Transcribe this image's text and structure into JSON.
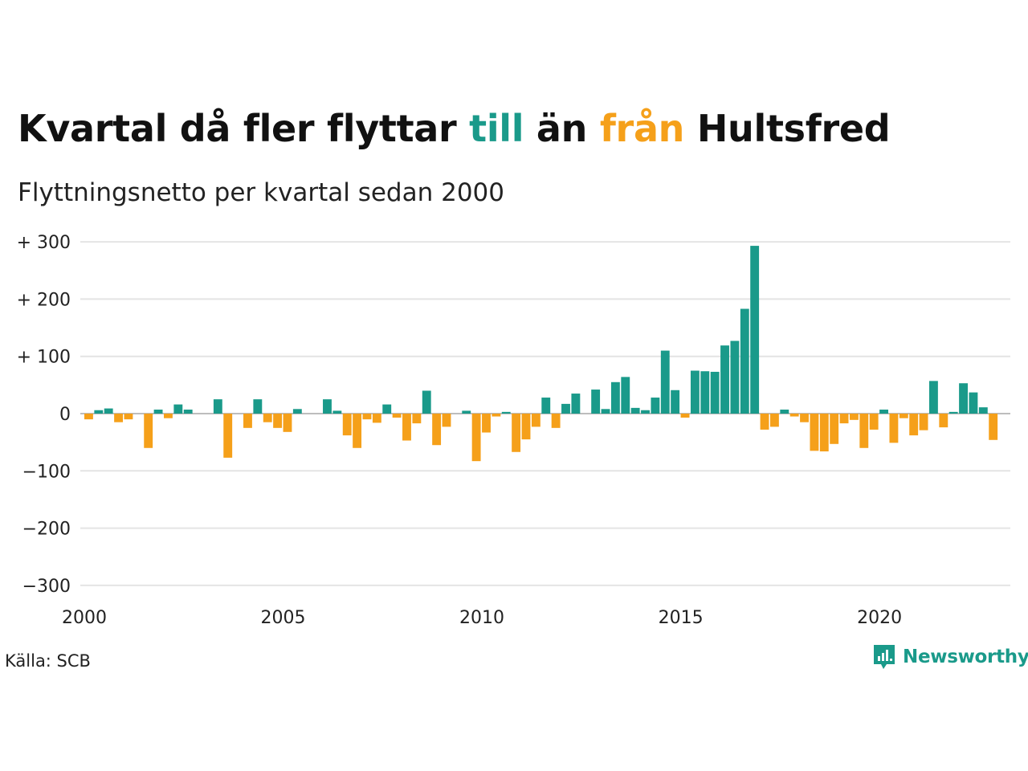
{
  "title_parts": [
    "Kvartal då fler flyttar ",
    "till",
    " än ",
    "från",
    " Hultsfred"
  ],
  "subtitle": "Flyttningsnetto per kvartal sedan 2000",
  "source": "Källa: SCB",
  "brand": "Newsworthy",
  "colors": {
    "positive": "#1a9a8a",
    "negative": "#f5a01a",
    "grid": "#e4e4e4",
    "text": "#111111"
  },
  "icons": [
    "newsworthy-logo-icon"
  ],
  "chart_data": {
    "type": "bar",
    "title": "Kvartal då fler flyttar till än från Hultsfred",
    "subtitle": "Flyttningsnetto per kvartal sedan 2000",
    "x_start": 2000,
    "x_step_per_bar": 0.25,
    "xlim": [
      2000,
      2023.25
    ],
    "ylim": [
      -300,
      300
    ],
    "x_ticks": [
      2000,
      2005,
      2010,
      2015,
      2020
    ],
    "x_tick_labels": [
      "2000",
      "2005",
      "2010",
      "2015",
      "2020"
    ],
    "y_ticks": [
      300,
      200,
      100,
      0,
      -100,
      -200,
      -300
    ],
    "y_tick_labels": [
      "+ 300",
      "+ 200",
      "+ 100",
      "0",
      "−100",
      "−200",
      "−300"
    ],
    "grid": true,
    "values": [
      -10,
      6,
      9,
      -15,
      -10,
      0,
      -60,
      7,
      -8,
      16,
      7,
      0,
      0,
      25,
      -77,
      0,
      -25,
      25,
      -15,
      -25,
      -32,
      8,
      0,
      0,
      25,
      5,
      -38,
      -60,
      -10,
      -16,
      16,
      -7,
      -47,
      -17,
      40,
      -55,
      -23,
      0,
      5,
      -83,
      -33,
      -5,
      3,
      -67,
      -45,
      -23,
      28,
      -25,
      17,
      35,
      0,
      42,
      8,
      55,
      64,
      10,
      6,
      28,
      110,
      41,
      -7,
      75,
      74,
      73,
      119,
      127,
      183,
      293,
      -28,
      -23,
      7,
      -5,
      -15,
      -65,
      -66,
      -53,
      -17,
      -11,
      -60,
      -28,
      7,
      -51,
      -8,
      -38,
      -29,
      57,
      -24,
      3,
      53,
      37,
      11,
      -46
    ]
  }
}
